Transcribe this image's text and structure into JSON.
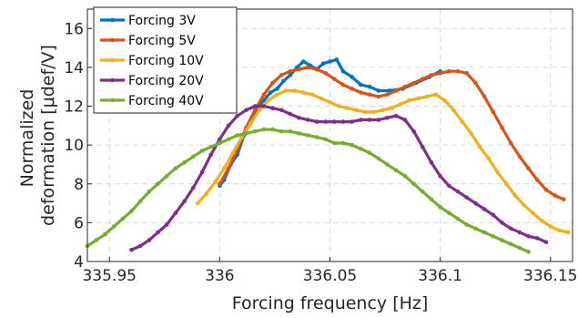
{
  "chart_data": {
    "type": "line",
    "title": "",
    "xlabel": "Forcing frequency [Hz]",
    "ylabel_lines": [
      "Normalized",
      "deformation [μdef/V]"
    ],
    "xlim": [
      335.94,
      336.16
    ],
    "ylim": [
      4,
      17
    ],
    "xticks": [
      335.95,
      336,
      336.05,
      336.1,
      336.15
    ],
    "xtick_labels": [
      "335.95",
      "336",
      "336.05",
      "336.1",
      "336.15"
    ],
    "yticks": [
      4,
      6,
      8,
      10,
      12,
      14,
      16
    ],
    "ytick_labels": [
      "4",
      "6",
      "8",
      "10",
      "12",
      "14",
      "16"
    ],
    "grid": true,
    "legend_position": "top-left",
    "series": [
      {
        "name": "Forcing 3V",
        "color": "#0072BD",
        "points": [
          [
            336.0,
            7.9
          ],
          [
            336.002,
            8.2
          ],
          [
            336.005,
            9.0
          ],
          [
            336.008,
            9.5
          ],
          [
            336.011,
            10.5
          ],
          [
            336.014,
            11.2
          ],
          [
            336.017,
            11.9
          ],
          [
            336.02,
            12.3
          ],
          [
            336.023,
            12.7
          ],
          [
            336.026,
            12.9
          ],
          [
            336.029,
            13.3
          ],
          [
            336.032,
            13.6
          ],
          [
            336.035,
            14.0
          ],
          [
            336.038,
            14.3
          ],
          [
            336.041,
            14.1
          ],
          [
            336.044,
            13.9
          ],
          [
            336.047,
            14.2
          ],
          [
            336.05,
            14.3
          ],
          [
            336.053,
            14.4
          ],
          [
            336.056,
            13.8
          ],
          [
            336.06,
            13.5
          ],
          [
            336.064,
            13.1
          ],
          [
            336.068,
            13.0
          ],
          [
            336.072,
            12.8
          ],
          [
            336.077,
            12.8
          ],
          [
            336.083,
            12.9
          ],
          [
            336.089,
            13.2
          ],
          [
            336.095,
            13.5
          ],
          [
            336.1,
            13.8
          ]
        ]
      },
      {
        "name": "Forcing 5V",
        "color": "#D95319",
        "points": [
          [
            336.0,
            8.0
          ],
          [
            336.004,
            8.8
          ],
          [
            336.008,
            9.8
          ],
          [
            336.012,
            10.9
          ],
          [
            336.016,
            11.8
          ],
          [
            336.02,
            12.6
          ],
          [
            336.024,
            13.2
          ],
          [
            336.028,
            13.6
          ],
          [
            336.032,
            13.8
          ],
          [
            336.036,
            13.9
          ],
          [
            336.04,
            14.0
          ],
          [
            336.044,
            13.9
          ],
          [
            336.048,
            13.7
          ],
          [
            336.052,
            13.4
          ],
          [
            336.056,
            13.1
          ],
          [
            336.06,
            12.9
          ],
          [
            336.064,
            12.7
          ],
          [
            336.068,
            12.6
          ],
          [
            336.072,
            12.5
          ],
          [
            336.076,
            12.6
          ],
          [
            336.08,
            12.8
          ],
          [
            336.084,
            13.0
          ],
          [
            336.088,
            13.2
          ],
          [
            336.092,
            13.4
          ],
          [
            336.096,
            13.6
          ],
          [
            336.1,
            13.7
          ],
          [
            336.104,
            13.8
          ],
          [
            336.108,
            13.8
          ],
          [
            336.112,
            13.7
          ],
          [
            336.116,
            13.2
          ],
          [
            336.12,
            12.5
          ],
          [
            336.124,
            11.7
          ],
          [
            336.128,
            10.9
          ],
          [
            336.132,
            10.1
          ],
          [
            336.136,
            9.4
          ],
          [
            336.14,
            8.8
          ],
          [
            336.144,
            8.2
          ],
          [
            336.148,
            7.7
          ],
          [
            336.152,
            7.4
          ],
          [
            336.156,
            7.2
          ]
        ]
      },
      {
        "name": "Forcing 10V",
        "color": "#EDB120",
        "points": [
          [
            335.99,
            7.0
          ],
          [
            335.994,
            7.5
          ],
          [
            335.998,
            8.1
          ],
          [
            336.002,
            8.8
          ],
          [
            336.006,
            9.6
          ],
          [
            336.01,
            10.4
          ],
          [
            336.014,
            11.1
          ],
          [
            336.018,
            11.8
          ],
          [
            336.022,
            12.3
          ],
          [
            336.026,
            12.6
          ],
          [
            336.03,
            12.8
          ],
          [
            336.034,
            12.8
          ],
          [
            336.038,
            12.7
          ],
          [
            336.042,
            12.6
          ],
          [
            336.046,
            12.4
          ],
          [
            336.05,
            12.2
          ],
          [
            336.054,
            12.0
          ],
          [
            336.058,
            11.9
          ],
          [
            336.062,
            11.8
          ],
          [
            336.066,
            11.7
          ],
          [
            336.07,
            11.7
          ],
          [
            336.074,
            11.8
          ],
          [
            336.078,
            11.9
          ],
          [
            336.082,
            12.1
          ],
          [
            336.086,
            12.3
          ],
          [
            336.09,
            12.4
          ],
          [
            336.094,
            12.5
          ],
          [
            336.098,
            12.6
          ],
          [
            336.102,
            12.3
          ],
          [
            336.106,
            11.8
          ],
          [
            336.11,
            11.2
          ],
          [
            336.114,
            10.6
          ],
          [
            336.118,
            9.9
          ],
          [
            336.122,
            9.3
          ],
          [
            336.126,
            8.6
          ],
          [
            336.13,
            8.0
          ],
          [
            336.134,
            7.4
          ],
          [
            336.138,
            6.9
          ],
          [
            336.142,
            6.5
          ],
          [
            336.146,
            6.1
          ],
          [
            336.15,
            5.8
          ],
          [
            336.154,
            5.6
          ],
          [
            336.158,
            5.5
          ]
        ]
      },
      {
        "name": "Forcing 20V",
        "color": "#7E2F8E",
        "points": [
          [
            335.96,
            4.6
          ],
          [
            335.964,
            4.8
          ],
          [
            335.968,
            5.1
          ],
          [
            335.972,
            5.5
          ],
          [
            335.976,
            5.9
          ],
          [
            335.98,
            6.5
          ],
          [
            335.984,
            7.1
          ],
          [
            335.988,
            7.8
          ],
          [
            335.992,
            8.6
          ],
          [
            335.996,
            9.5
          ],
          [
            336.0,
            10.3
          ],
          [
            336.004,
            11.0
          ],
          [
            336.008,
            11.5
          ],
          [
            336.012,
            11.8
          ],
          [
            336.016,
            12.0
          ],
          [
            336.02,
            12.0
          ],
          [
            336.024,
            11.9
          ],
          [
            336.028,
            11.8
          ],
          [
            336.032,
            11.6
          ],
          [
            336.036,
            11.4
          ],
          [
            336.04,
            11.3
          ],
          [
            336.044,
            11.2
          ],
          [
            336.048,
            11.2
          ],
          [
            336.052,
            11.2
          ],
          [
            336.056,
            11.2
          ],
          [
            336.06,
            11.2
          ],
          [
            336.064,
            11.3
          ],
          [
            336.068,
            11.3
          ],
          [
            336.072,
            11.3
          ],
          [
            336.076,
            11.4
          ],
          [
            336.08,
            11.5
          ],
          [
            336.084,
            11.3
          ],
          [
            336.088,
            10.7
          ],
          [
            336.092,
            9.9
          ],
          [
            336.096,
            9.1
          ],
          [
            336.1,
            8.4
          ],
          [
            336.104,
            7.9
          ],
          [
            336.108,
            7.6
          ],
          [
            336.112,
            7.3
          ],
          [
            336.116,
            7.0
          ],
          [
            336.12,
            6.7
          ],
          [
            336.124,
            6.4
          ],
          [
            336.128,
            6.0
          ],
          [
            336.132,
            5.7
          ],
          [
            336.136,
            5.5
          ],
          [
            336.14,
            5.3
          ],
          [
            336.144,
            5.2
          ],
          [
            336.148,
            5.0
          ]
        ]
      },
      {
        "name": "Forcing 40V",
        "color": "#77AC30",
        "points": [
          [
            335.94,
            4.8
          ],
          [
            335.944,
            5.1
          ],
          [
            335.948,
            5.4
          ],
          [
            335.952,
            5.8
          ],
          [
            335.956,
            6.2
          ],
          [
            335.96,
            6.6
          ],
          [
            335.964,
            7.1
          ],
          [
            335.968,
            7.6
          ],
          [
            335.972,
            8.0
          ],
          [
            335.976,
            8.4
          ],
          [
            335.98,
            8.8
          ],
          [
            335.984,
            9.1
          ],
          [
            335.988,
            9.4
          ],
          [
            335.992,
            9.7
          ],
          [
            335.996,
            9.9
          ],
          [
            336.0,
            10.1
          ],
          [
            336.004,
            10.3
          ],
          [
            336.008,
            10.5
          ],
          [
            336.012,
            10.6
          ],
          [
            336.016,
            10.7
          ],
          [
            336.02,
            10.8
          ],
          [
            336.024,
            10.8
          ],
          [
            336.028,
            10.7
          ],
          [
            336.032,
            10.7
          ],
          [
            336.036,
            10.6
          ],
          [
            336.04,
            10.5
          ],
          [
            336.044,
            10.4
          ],
          [
            336.048,
            10.3
          ],
          [
            336.052,
            10.1
          ],
          [
            336.056,
            10.1
          ],
          [
            336.06,
            10.0
          ],
          [
            336.064,
            9.8
          ],
          [
            336.068,
            9.6
          ],
          [
            336.072,
            9.3
          ],
          [
            336.076,
            9.0
          ],
          [
            336.08,
            8.7
          ],
          [
            336.084,
            8.4
          ],
          [
            336.088,
            8.0
          ],
          [
            336.092,
            7.6
          ],
          [
            336.096,
            7.2
          ],
          [
            336.1,
            6.8
          ],
          [
            336.104,
            6.5
          ],
          [
            336.108,
            6.2
          ],
          [
            336.112,
            5.9
          ],
          [
            336.116,
            5.7
          ],
          [
            336.12,
            5.5
          ],
          [
            336.124,
            5.3
          ],
          [
            336.128,
            5.1
          ],
          [
            336.132,
            4.9
          ],
          [
            336.136,
            4.7
          ],
          [
            336.14,
            4.5
          ]
        ]
      }
    ]
  }
}
